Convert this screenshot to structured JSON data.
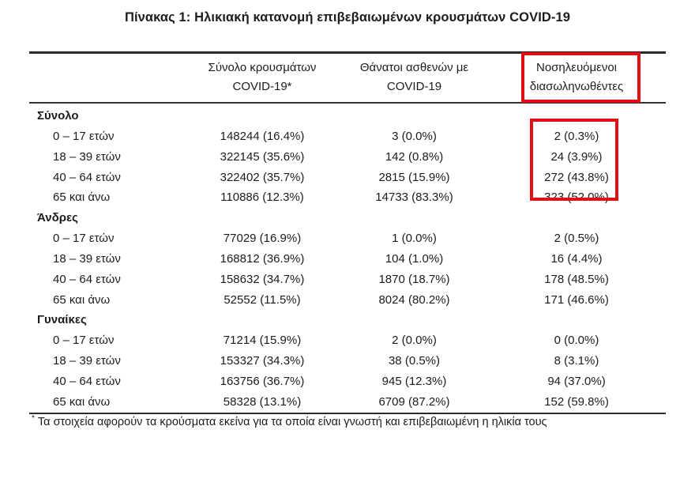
{
  "page": {
    "title": "Πίνακας 1: Ηλικιακή κατανομή επιβεβαιωμένων κρουσμάτων COVID-19"
  },
  "table": {
    "headers": {
      "total_cases": "Σύνολο κρουσμάτων COVID-19*",
      "deaths": "Θάνατοι ασθενών με COVID-19",
      "intubated": "Νοσηλευόμενοι διασωληνωθέντες"
    },
    "sections": [
      {
        "name": "Σύνολο",
        "rows": [
          {
            "label": "0 – 17 ετών",
            "total": "148244 (16.4%)",
            "deaths": "3 (0.0%)",
            "intubated": "2 (0.3%)"
          },
          {
            "label": "18 – 39 ετών",
            "total": "322145 (35.6%)",
            "deaths": "142 (0.8%)",
            "intubated": "24 (3.9%)"
          },
          {
            "label": "40 – 64 ετών",
            "total": "322402 (35.7%)",
            "deaths": "2815 (15.9%)",
            "intubated": "272 (43.8%)"
          },
          {
            "label": "65 και άνω",
            "total": "110886 (12.3%)",
            "deaths": "14733 (83.3%)",
            "intubated": "323 (52.0%)"
          }
        ]
      },
      {
        "name": "Άνδρες",
        "rows": [
          {
            "label": "0 – 17 ετών",
            "total": "77029 (16.9%)",
            "deaths": "1 (0.0%)",
            "intubated": "2 (0.5%)"
          },
          {
            "label": "18 – 39 ετών",
            "total": "168812 (36.9%)",
            "deaths": "104 (1.0%)",
            "intubated": "16 (4.4%)"
          },
          {
            "label": "40 – 64 ετών",
            "total": "158632 (34.7%)",
            "deaths": "1870 (18.7%)",
            "intubated": "178 (48.5%)"
          },
          {
            "label": "65 και άνω",
            "total": "52552 (11.5%)",
            "deaths": "8024 (80.2%)",
            "intubated": "171 (46.6%)"
          }
        ]
      },
      {
        "name": "Γυναίκες",
        "rows": [
          {
            "label": "0 – 17 ετών",
            "total": "71214 (15.9%)",
            "deaths": "2 (0.0%)",
            "intubated": "0 (0.0%)"
          },
          {
            "label": "18 – 39 ετών",
            "total": "153327 (34.3%)",
            "deaths": "38 (0.5%)",
            "intubated": "8 (3.1%)"
          },
          {
            "label": "40 – 64 ετών",
            "total": "163756 (36.7%)",
            "deaths": "945 (12.3%)",
            "intubated": "94 (37.0%)"
          },
          {
            "label": "65 και άνω",
            "total": "58328 (13.1%)",
            "deaths": "6709 (87.2%)",
            "intubated": "152 (59.8%)"
          }
        ]
      }
    ]
  },
  "footnote": {
    "marker": "*",
    "text": "Τα στοιχεία αφορούν τα κρούσματα εκείνα για τα οποία είναι γνωστή και επιβεβαιωμένη η ηλικία τους"
  },
  "annotations": {
    "highlight_color": "#e30e14",
    "boxes": [
      {
        "target": "intubated-column-header"
      },
      {
        "target": "intubated-values-total-section"
      }
    ]
  }
}
